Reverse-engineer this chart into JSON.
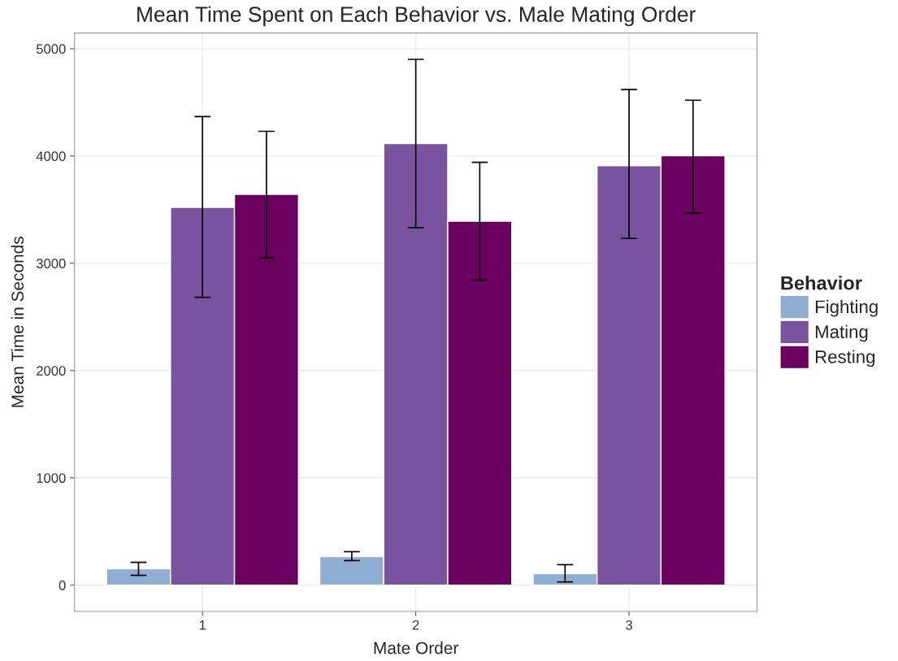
{
  "chart_data": {
    "type": "bar",
    "title": "Mean Time Spent on Each Behavior vs. Male Mating Order",
    "xlabel": "Mate Order",
    "ylabel": "Mean Time in Seconds",
    "legend_title": "Behavior",
    "categories": [
      "1",
      "2",
      "3"
    ],
    "series": [
      {
        "name": "Fighting",
        "color": "#8eaed4",
        "values": [
          152,
          267,
          107
        ],
        "errors": [
          [
            91,
            213
          ],
          [
            229,
            312
          ],
          [
            30,
            191
          ]
        ]
      },
      {
        "name": "Mating",
        "color": "#7a53a0",
        "values": [
          3521,
          4116,
          3910
        ],
        "errors": [
          [
            2683,
            4367
          ],
          [
            3331,
            4901
          ],
          [
            3232,
            4619
          ]
        ]
      },
      {
        "name": "Resting",
        "color": "#6b0060",
        "values": [
          3643,
          3392,
          4002
        ],
        "errors": [
          [
            3049,
            4230
          ],
          [
            2843,
            3941
          ],
          [
            3468,
            4520
          ]
        ]
      }
    ],
    "ylim": [
      -245,
      5146
    ],
    "yticks": [
      0,
      1000,
      2000,
      3000,
      4000,
      5000
    ],
    "grid": true,
    "legend": "right"
  }
}
